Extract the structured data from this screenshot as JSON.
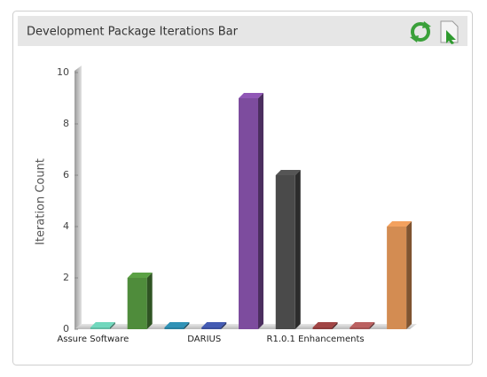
{
  "chart_data": {
    "type": "bar3d",
    "title": "Development Package Iterations Bar",
    "y_label": "Iteration Count",
    "categories": [
      "Assure Software",
      null,
      null,
      "DARIUS",
      null,
      null,
      "R1.0.1 Enhancements",
      null,
      null
    ],
    "values": [
      0,
      2,
      0,
      0,
      9,
      6,
      0,
      0,
      4
    ],
    "colors": [
      "#62bca4",
      "#4f8c3b",
      "#2a7f9e",
      "#3b4f9c",
      "#7d4c9e",
      "#4a4a4a",
      "#8c3c3c",
      "#a35454",
      "#d38c52"
    ],
    "ylim": [
      0,
      10
    ],
    "yticks": [
      0,
      2,
      4,
      6,
      8,
      10
    ],
    "grid": false
  }
}
